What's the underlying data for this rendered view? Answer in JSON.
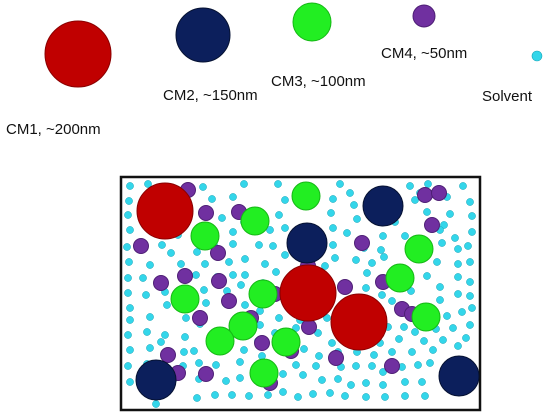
{
  "colors": {
    "cm1": "#c00000",
    "cm2": "#0c1f5c",
    "cm3": "#22ee22",
    "cm4": "#7030a0",
    "solvent": "#33d6ea",
    "box_border": "#111111"
  },
  "legend": {
    "cm1_label": "CM1, ~200nm",
    "cm2_label": "CM2, ~150nm",
    "cm3_label": "CM3, ~100nm",
    "cm4_label": "CM4, ~50nm",
    "solvent_label": "Solvent"
  }
}
